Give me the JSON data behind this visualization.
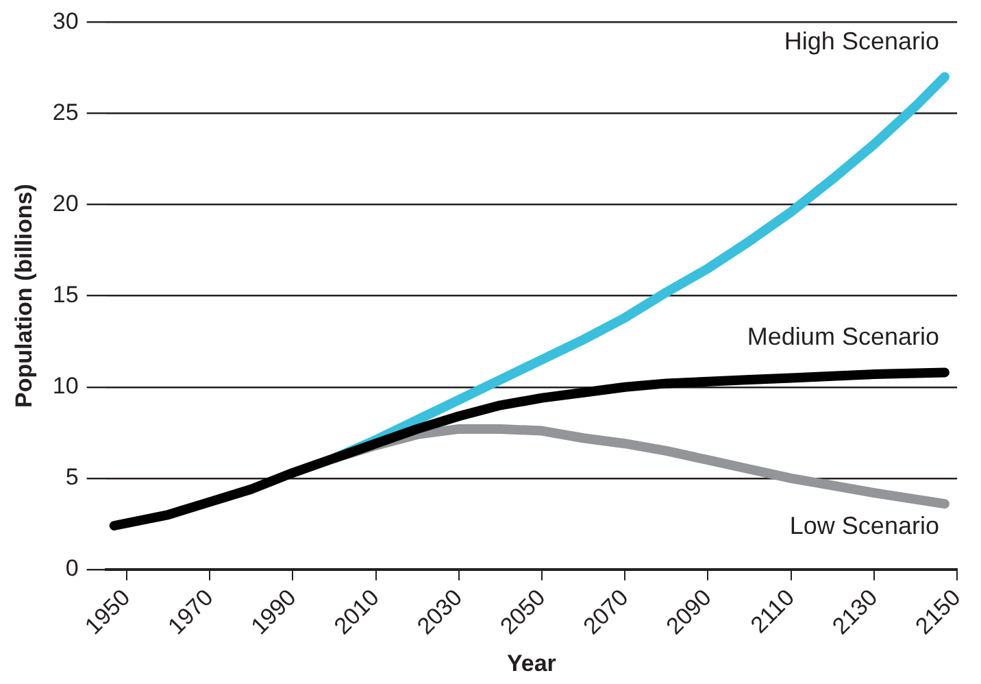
{
  "chart_data": {
    "type": "line",
    "xlabel": "Year",
    "ylabel": "Population (billions)",
    "xlim": [
      1945,
      2150
    ],
    "xticks": [
      1950,
      1970,
      1990,
      2010,
      2030,
      2050,
      2070,
      2090,
      2110,
      2130,
      2150
    ],
    "ylim": [
      0,
      30
    ],
    "yticks": [
      0,
      5,
      10,
      15,
      20,
      25,
      30
    ],
    "grid": "y",
    "legend": false,
    "marker": "none",
    "line_style": "solid",
    "series": [
      {
        "name": "Medium Scenario",
        "color": "#000000",
        "x": [
          1947,
          1960,
          1970,
          1980,
          1990,
          2000,
          2010,
          2020,
          2030,
          2040,
          2050,
          2060,
          2070,
          2080,
          2090,
          2100,
          2110,
          2120,
          2130,
          2147
        ],
        "values": [
          2.4,
          3.0,
          3.7,
          4.4,
          5.3,
          6.1,
          6.9,
          7.7,
          8.4,
          9.0,
          9.4,
          9.7,
          10.0,
          10.2,
          10.3,
          10.4,
          10.5,
          10.6,
          10.7,
          10.8
        ]
      },
      {
        "name": "High Scenario",
        "color": "#3bbfdc",
        "x": [
          2000,
          2010,
          2020,
          2030,
          2040,
          2050,
          2060,
          2070,
          2080,
          2090,
          2100,
          2110,
          2120,
          2130,
          2140,
          2147
        ],
        "values": [
          6.1,
          7.1,
          8.2,
          9.3,
          10.4,
          11.5,
          12.6,
          13.8,
          15.2,
          16.5,
          18.0,
          19.6,
          21.4,
          23.3,
          25.4,
          27.0
        ]
      },
      {
        "name": "Low Scenario",
        "color": "#939598",
        "x": [
          2000,
          2010,
          2020,
          2030,
          2040,
          2050,
          2060,
          2070,
          2080,
          2090,
          2100,
          2110,
          2120,
          2130,
          2147
        ],
        "values": [
          6.1,
          6.8,
          7.4,
          7.7,
          7.7,
          7.6,
          7.2,
          6.9,
          6.5,
          6.0,
          5.5,
          5.0,
          4.6,
          4.2,
          3.6
        ]
      }
    ]
  }
}
